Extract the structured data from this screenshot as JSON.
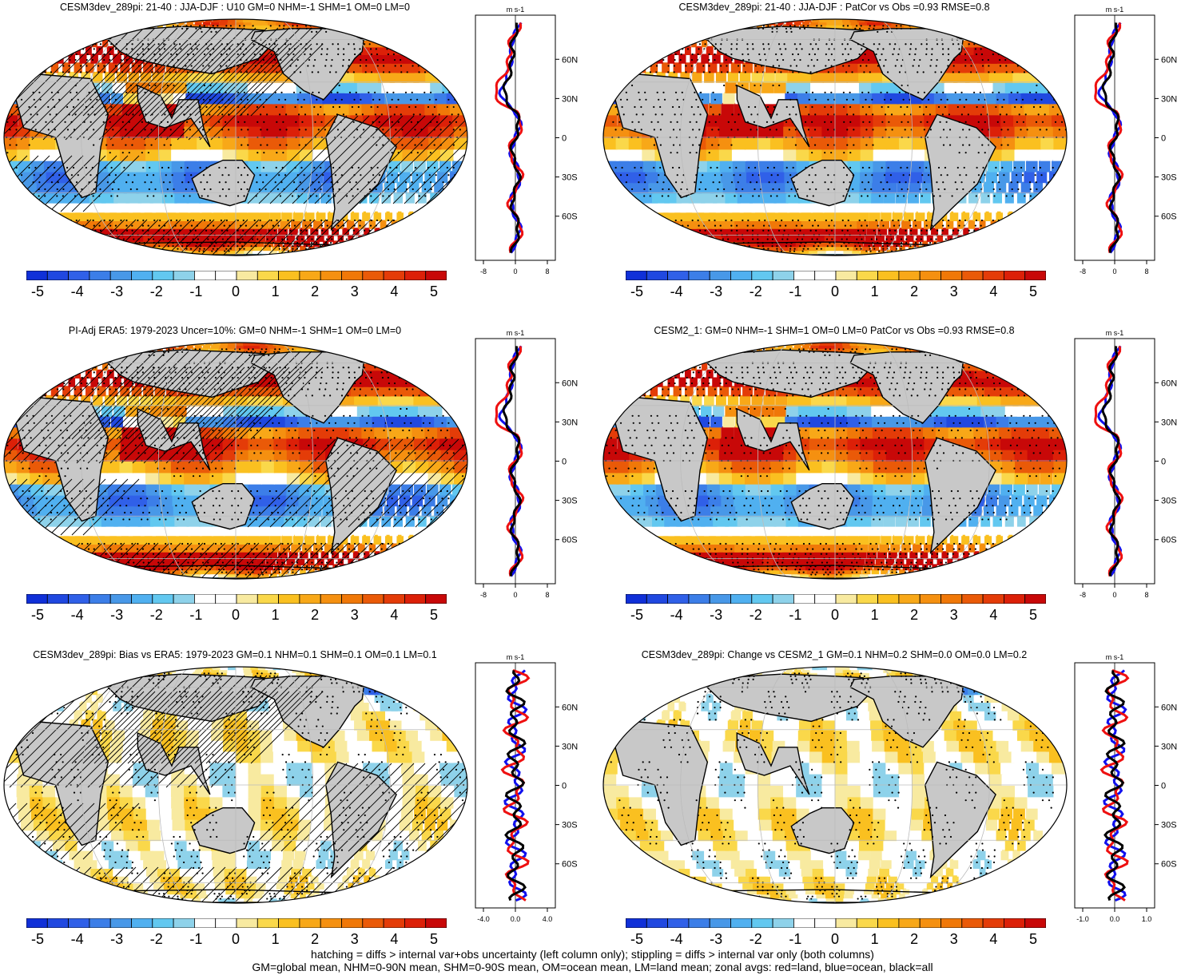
{
  "colors": {
    "land": "#c8c8c8",
    "scale": [
      "#1030d8",
      "#2048e0",
      "#3060e8",
      "#3c7ee8",
      "#4898e8",
      "#50b0f0",
      "#62c8f0",
      "#8ed2ea",
      "#ffffff",
      "#ffffff",
      "#f8eaa0",
      "#fad84a",
      "#fac020",
      "#f8a818",
      "#f59010",
      "#f07808",
      "#ea5a08",
      "#e43c08",
      "#dc2008",
      "#c80808"
    ],
    "zonal_land": "#ee1010",
    "zonal_ocean": "#1010ee",
    "zonal_all": "#000000"
  },
  "colorbar_ticks": [
    "-5",
    "-4",
    "-3",
    "-2",
    "-1",
    "0",
    "1",
    "2",
    "3",
    "4",
    "5"
  ],
  "zonal_units": "m s-1",
  "lat_labels": [
    "60N",
    "30N",
    "0",
    "30S",
    "60S"
  ],
  "panels": [
    {
      "title": "CESM3dev_289pi: 21-40 : JJA-DJF : U10 GM=0 NHM=-1 SHM=1 OM=0 LM=0",
      "hatching": true,
      "style": "strong",
      "xticks": [
        "-8",
        "0",
        "8"
      ]
    },
    {
      "title": "CESM3dev_289pi: 21-40 : JJA-DJF : PatCor vs Obs =0.93 RMSE=0.8",
      "hatching": false,
      "style": "strong",
      "xticks": [
        "-8",
        "0",
        "8"
      ]
    },
    {
      "title": "PI-Adj ERA5: 1979-2023 Uncer=10%: GM=0 NHM=-1 SHM=1 OM=0 LM=0",
      "hatching": true,
      "style": "strong",
      "xticks": [
        "-8",
        "0",
        "8"
      ]
    },
    {
      "title": "CESM2_1: GM=0 NHM=-1 SHM=1 OM=0 LM=0 PatCor vs Obs =0.93 RMSE=0.8",
      "hatching": false,
      "style": "strong",
      "xticks": [
        "-8",
        "0",
        "8"
      ]
    },
    {
      "title": "CESM3dev_289pi: Bias vs ERA5: 1979-2023 GM=0.1 NHM=0.1 SHM=0.1 OM=0.1 LM=0.1",
      "hatching": true,
      "style": "weak",
      "xticks": [
        "-4.0",
        "0.0",
        "4.0"
      ]
    },
    {
      "title": "CESM3dev_289pi: Change vs CESM2_1 GM=0.1 NHM=0.2 SHM=0.0 OM=0.0 LM=0.2",
      "hatching": false,
      "style": "weak",
      "xticks": [
        "-1.0",
        "0.0",
        "1.0"
      ]
    }
  ],
  "footer": {
    "line1": "hatching = diffs > internal var+obs uncertainty (left column only); stippling = diffs > internal var only (both columns)",
    "line2": "GM=global mean, NHM=0-90N mean, SHM=0-90S mean, OM=ocean mean, LM=land mean; zonal avgs: red=land, blue=ocean, black=all"
  }
}
